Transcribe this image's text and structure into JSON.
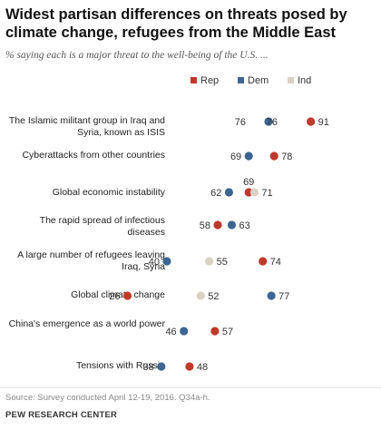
{
  "header": {
    "title": "Widest partisan differences on threats posed by climate change, refugees from the Middle East",
    "subtitle": "% saying each is a major threat to the well-being of the U.S. ..."
  },
  "chart_data": {
    "type": "scatter",
    "title": "Widest partisan differences on threats posed by climate change, refugees from the Middle East",
    "subtitle": "% saying each is a major threat to the well-being of the U.S. ...",
    "xlim": [
      0,
      100
    ],
    "grid": false,
    "legend_position": "top-right",
    "colors": {
      "Rep": "#c0392b",
      "Dem": "#3d6591",
      "Ind": "#d7d2c3"
    },
    "categories": [
      "The Islamic militant group in Iraq and Syria, known as ISIS",
      "Cyberattacks from other countries",
      "Global economic instability",
      "The rapid spread of infectious diseases",
      "A large number of refugees leaving Iraq, Syria",
      "Global climate change",
      "China's emergence as a world power",
      "Tensions with Russia"
    ],
    "series": [
      {
        "name": "Rep",
        "values": [
          91,
          78,
          69,
          58,
          74,
          26,
          57,
          48
        ]
      },
      {
        "name": "Dem",
        "values": [
          76,
          69,
          62,
          63,
          40,
          77,
          46,
          38
        ]
      },
      {
        "name": "Ind",
        "values": [
          null,
          null,
          71,
          null,
          55,
          52,
          null,
          null
        ]
      }
    ],
    "data_labels": [
      [
        {
          "v": "76",
          "s": "Dem"
        },
        {
          "v": "76",
          "s": "Dem2"
        },
        {
          "v": "91",
          "s": "Rep"
        }
      ],
      [
        {
          "v": "69",
          "s": "Dem"
        },
        {
          "v": "78",
          "s": "Rep"
        }
      ],
      [
        {
          "v": "62",
          "s": "Dem"
        },
        {
          "v": "69",
          "s": "Rep"
        },
        {
          "v": "71",
          "s": "Ind"
        }
      ],
      [
        {
          "v": "58",
          "s": "Rep"
        },
        {
          "v": "63",
          "s": "Dem"
        }
      ],
      [
        {
          "v": "40",
          "s": "Dem"
        },
        {
          "v": "55",
          "s": "Ind"
        },
        {
          "v": "74",
          "s": "Rep"
        }
      ],
      [
        {
          "v": "26",
          "s": "Rep"
        },
        {
          "v": "52",
          "s": "Ind"
        },
        {
          "v": "77",
          "s": "Dem"
        }
      ],
      [
        {
          "v": "46",
          "s": "Dem"
        },
        {
          "v": "57",
          "s": "Rep"
        }
      ],
      [
        {
          "v": "38",
          "s": "Dem"
        },
        {
          "v": "48",
          "s": "Rep"
        }
      ]
    ]
  },
  "footer": {
    "source": "Source: Survey conducted April 12-19, 2016. Q34a-h.",
    "credit": "PEW RESEARCH CENTER"
  }
}
